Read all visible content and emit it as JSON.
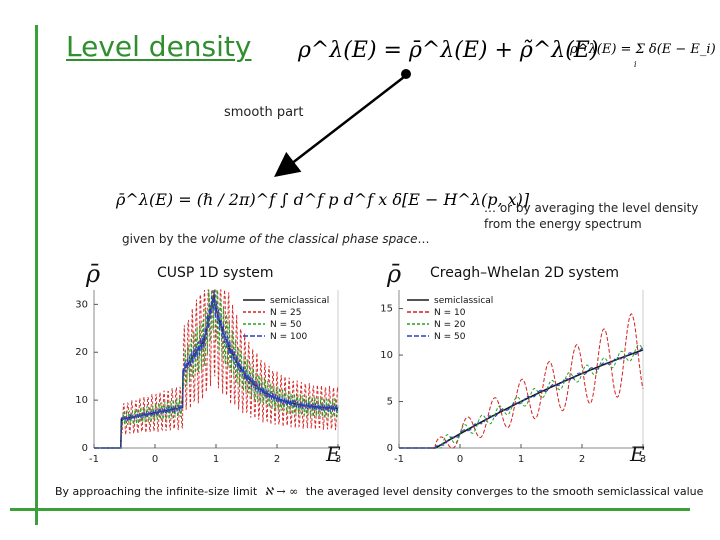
{
  "slide": {
    "title": "Level density",
    "eq_main": "ρ^λ(E) = ρ̄^λ(E) + ρ̃^λ(E)",
    "eq_def": "ρ^λ(E) = Σ δ(E − E_i)",
    "eq_def_index": "i",
    "smooth_label": "smooth part",
    "eq_smooth": "ρ̄^λ(E) = (ℏ / 2π)^f ∫ d^f p d^f x δ[E − H^λ(p, x)]",
    "phase_space_prefix": "given by the ",
    "phase_space_emph": "volume of the classical phase space",
    "phase_space_suffix": "…",
    "averaging_note": "… or by averaging the level density from the energy spectrum",
    "bottom_prefix": "By approaching the infinite-size limit",
    "bottom_limit": "ℵ → ∞",
    "bottom_suffix": "the averaged level density converges to the smooth semiclassical value"
  },
  "colors": {
    "accent": "#3aa03a",
    "semiclassical": "#1a1a1a",
    "red": "#d42020",
    "green": "#23a323",
    "blue": "#2a3fc9"
  },
  "chart_data": [
    {
      "type": "line",
      "title": "CUSP 1D system",
      "ylabel": "ρ̄",
      "xlabel": "E",
      "xlim": [
        -1,
        3
      ],
      "ylim": [
        0,
        33
      ],
      "xticks": [
        -1,
        0,
        1,
        2,
        3
      ],
      "yticks": [
        0,
        10,
        20,
        30
      ],
      "legend": [
        "semiclassical",
        "N = 25",
        "N = 50",
        "N = 100"
      ],
      "legend_position": "top-right"
    },
    {
      "type": "line",
      "title": "Creagh–Whelan 2D system",
      "ylabel": "ρ̄",
      "xlabel": "E",
      "xlim": [
        -1,
        3
      ],
      "ylim": [
        0,
        17
      ],
      "xticks": [
        -1,
        0,
        1,
        2,
        3
      ],
      "yticks": [
        0,
        5,
        10,
        15
      ],
      "legend": [
        "semiclassical",
        "N = 10",
        "N = 20",
        "N = 50"
      ],
      "legend_position": "top-left"
    }
  ]
}
